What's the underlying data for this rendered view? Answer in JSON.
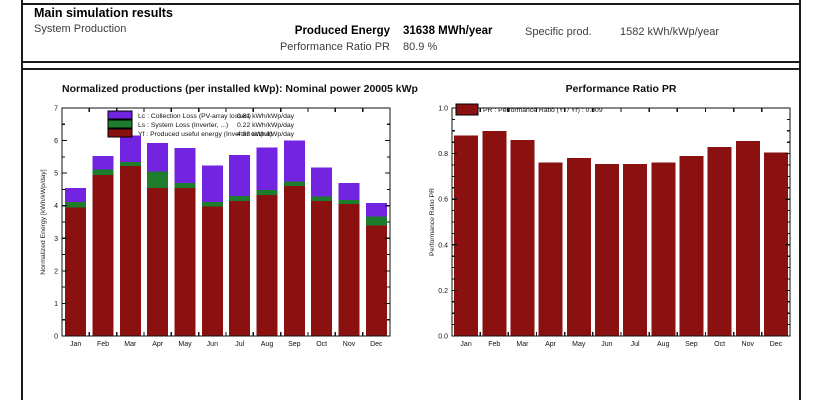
{
  "header": {
    "title": "Main simulation results",
    "subtitle": "System Production",
    "produced_energy_label": "Produced Energy",
    "produced_energy_value": "31638 MWh/year",
    "specific_prod_label": "Specific prod.",
    "specific_prod_value": "1582 kWh/kWp/year",
    "pr_label": "Performance Ratio PR",
    "pr_value": "80.9 %"
  },
  "colors": {
    "yf": "#8b1111",
    "ls": "#1e7d2c",
    "lc": "#7224e0",
    "pr": "#8b1111",
    "border": "#1b1b1b",
    "ink": "#111111",
    "gray_text": "#3d3d3d"
  },
  "chart_data": [
    {
      "id": "norm",
      "type": "bar",
      "stacked": true,
      "title": "Normalized productions (per installed kWp):  Nominal power 20005 kWp",
      "ylabel": "Normalized Energy [kWh/kWp/day]",
      "xlabel": "",
      "ylim": [
        0,
        7
      ],
      "grid": false,
      "legend_position": "top-left",
      "categories": [
        "Jan",
        "Feb",
        "Mar",
        "Apr",
        "May",
        "Jun",
        "Jul",
        "Aug",
        "Sep",
        "Oct",
        "Nov",
        "Dec"
      ],
      "series": [
        {
          "key": "yf",
          "name": "Yf : Produced useful energy  (Inverter output)",
          "avg_label": "4.33 kWh/kWp/day",
          "values": [
            3.95,
            4.95,
            5.22,
            4.54,
            4.55,
            3.97,
            4.14,
            4.33,
            4.6,
            4.15,
            4.05,
            3.4
          ]
        },
        {
          "key": "ls",
          "name": "Ls : System Loss  (Inverter, ...)",
          "avg_label": "0.22 kWh/kWp/day",
          "values": [
            0.17,
            0.16,
            0.13,
            0.51,
            0.15,
            0.14,
            0.16,
            0.15,
            0.15,
            0.14,
            0.13,
            0.27
          ]
        },
        {
          "key": "lc",
          "name": "Lc : Collection Loss (PV-array losses)",
          "avg_label": "0.81 kWh/kWp/day",
          "values": [
            0.43,
            0.41,
            0.8,
            0.87,
            1.07,
            1.12,
            1.25,
            1.3,
            1.25,
            0.89,
            0.52,
            0.41
          ]
        }
      ],
      "legend_order": [
        "lc",
        "ls",
        "yf"
      ]
    },
    {
      "id": "pr",
      "type": "bar",
      "stacked": false,
      "title": "Performance Ratio PR",
      "ylabel": "Performance Ratio PR",
      "xlabel": "",
      "ylim": [
        0,
        1.0
      ],
      "grid": false,
      "legend_position": "top-left",
      "legend_label": "PR : Performance Ratio (Yf / Yr) :  0.809",
      "categories": [
        "Jan",
        "Feb",
        "Mar",
        "Apr",
        "May",
        "Jun",
        "Jul",
        "Aug",
        "Sep",
        "Oct",
        "Nov",
        "Dec"
      ],
      "series": [
        {
          "key": "pr",
          "name": "PR",
          "values": [
            0.88,
            0.9,
            0.86,
            0.76,
            0.78,
            0.755,
            0.755,
            0.76,
            0.79,
            0.83,
            0.855,
            0.805
          ]
        }
      ]
    }
  ]
}
